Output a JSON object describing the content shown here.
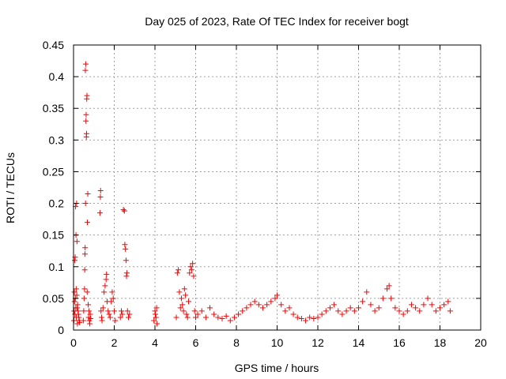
{
  "chart_data": {
    "type": "scatter",
    "title": "Day 025 of 2023, Rate Of TEC Index for receiver bogt",
    "xlabel": "GPS time / hours",
    "ylabel": "ROTI / TECUs",
    "xlim": [
      0,
      20
    ],
    "ylim": [
      0,
      0.45
    ],
    "x_ticks": [
      0,
      2,
      4,
      6,
      8,
      10,
      12,
      14,
      16,
      18,
      20
    ],
    "y_ticks": [
      0,
      0.05,
      0.1,
      0.15,
      0.2,
      0.25,
      0.3,
      0.35,
      0.4,
      0.45
    ],
    "x_tick_labels": [
      "0",
      "2",
      "4",
      "6",
      "8",
      "10",
      "12",
      "14",
      "16",
      "18",
      "20"
    ],
    "y_tick_labels": [
      "0",
      "0.05",
      "0.1",
      "0.15",
      "0.2",
      "0.25",
      "0.3",
      "0.35",
      "0.4",
      "0.45"
    ],
    "grid": true,
    "marker": "plus",
    "color": "#ff0000",
    "series": [
      {
        "name": "ROTI",
        "points": [
          [
            0.02,
            0.015
          ],
          [
            0.03,
            0.03
          ],
          [
            0.04,
            0.06
          ],
          [
            0.05,
            0.045
          ],
          [
            0.06,
            0.11
          ],
          [
            0.07,
            0.025
          ],
          [
            0.08,
            0.115
          ],
          [
            0.09,
            0.05
          ],
          [
            0.1,
            0.195
          ],
          [
            0.11,
            0.035
          ],
          [
            0.12,
            0.15
          ],
          [
            0.13,
            0.065
          ],
          [
            0.14,
            0.02
          ],
          [
            0.15,
            0.2
          ],
          [
            0.16,
            0.055
          ],
          [
            0.17,
            0.14
          ],
          [
            0.18,
            0.035
          ],
          [
            0.19,
            0.01
          ],
          [
            0.2,
            0.04
          ],
          [
            0.22,
            0.03
          ],
          [
            0.24,
            0.025
          ],
          [
            0.26,
            0.02
          ],
          [
            0.28,
            0.015
          ],
          [
            0.3,
            0.012
          ],
          [
            0.48,
            0.015
          ],
          [
            0.5,
            0.03
          ],
          [
            0.52,
            0.05
          ],
          [
            0.54,
            0.065
          ],
          [
            0.55,
            0.095
          ],
          [
            0.56,
            0.12
          ],
          [
            0.57,
            0.13
          ],
          [
            0.58,
            0.41
          ],
          [
            0.59,
            0.2
          ],
          [
            0.6,
            0.42
          ],
          [
            0.61,
            0.33
          ],
          [
            0.62,
            0.34
          ],
          [
            0.63,
            0.305
          ],
          [
            0.64,
            0.31
          ],
          [
            0.65,
            0.365
          ],
          [
            0.66,
            0.37
          ],
          [
            0.67,
            0.06
          ],
          [
            0.68,
            0.17
          ],
          [
            0.7,
            0.215
          ],
          [
            0.72,
            0.04
          ],
          [
            0.74,
            0.02
          ],
          [
            0.76,
            0.03
          ],
          [
            0.78,
            0.015
          ],
          [
            0.8,
            0.01
          ],
          [
            0.82,
            0.025
          ],
          [
            0.84,
            0.018
          ],
          [
            1.3,
            0.185
          ],
          [
            1.32,
            0.21
          ],
          [
            1.33,
            0.22
          ],
          [
            1.35,
            0.03
          ],
          [
            1.38,
            0.02
          ],
          [
            1.4,
            0.015
          ],
          [
            1.45,
            0.035
          ],
          [
            1.5,
            0.06
          ],
          [
            1.55,
            0.07
          ],
          [
            1.6,
            0.08
          ],
          [
            1.62,
            0.088
          ],
          [
            1.65,
            0.045
          ],
          [
            1.7,
            0.03
          ],
          [
            1.75,
            0.025
          ],
          [
            1.8,
            0.02
          ],
          [
            1.85,
            0.045
          ],
          [
            1.9,
            0.06
          ],
          [
            1.95,
            0.05
          ],
          [
            2.0,
            0.03
          ],
          [
            2.05,
            0.015
          ],
          [
            2.3,
            0.02
          ],
          [
            2.35,
            0.03
          ],
          [
            2.4,
            0.025
          ],
          [
            2.45,
            0.19
          ],
          [
            2.5,
            0.188
          ],
          [
            2.52,
            0.135
          ],
          [
            2.55,
            0.128
          ],
          [
            2.58,
            0.11
          ],
          [
            2.6,
            0.085
          ],
          [
            2.62,
            0.09
          ],
          [
            2.65,
            0.03
          ],
          [
            2.7,
            0.02
          ],
          [
            2.75,
            0.025
          ],
          [
            3.95,
            0.015
          ],
          [
            4.0,
            0.03
          ],
          [
            4.02,
            0.025
          ],
          [
            4.05,
            0.02
          ],
          [
            4.08,
            0.035
          ],
          [
            4.1,
            0.01
          ],
          [
            5.05,
            0.02
          ],
          [
            5.1,
            0.09
          ],
          [
            5.15,
            0.095
          ],
          [
            5.2,
            0.06
          ],
          [
            5.25,
            0.035
          ],
          [
            5.3,
            0.05
          ],
          [
            5.35,
            0.04
          ],
          [
            5.4,
            0.03
          ],
          [
            5.45,
            0.065
          ],
          [
            5.5,
            0.055
          ],
          [
            5.55,
            0.025
          ],
          [
            5.6,
            0.02
          ],
          [
            5.65,
            0.045
          ],
          [
            5.7,
            0.09
          ],
          [
            5.75,
            0.1
          ],
          [
            5.8,
            0.095
          ],
          [
            5.85,
            0.105
          ],
          [
            5.9,
            0.085
          ],
          [
            5.95,
            0.03
          ],
          [
            6.0,
            0.02
          ],
          [
            6.1,
            0.025
          ],
          [
            6.3,
            0.03
          ],
          [
            6.5,
            0.02
          ],
          [
            6.7,
            0.035
          ],
          [
            6.9,
            0.025
          ],
          [
            7.1,
            0.02
          ],
          [
            7.3,
            0.018
          ],
          [
            7.5,
            0.022
          ],
          [
            7.7,
            0.015
          ],
          [
            7.9,
            0.02
          ],
          [
            8.1,
            0.025
          ],
          [
            8.3,
            0.03
          ],
          [
            8.5,
            0.035
          ],
          [
            8.7,
            0.04
          ],
          [
            8.9,
            0.045
          ],
          [
            9.1,
            0.04
          ],
          [
            9.3,
            0.035
          ],
          [
            9.5,
            0.04
          ],
          [
            9.7,
            0.045
          ],
          [
            9.9,
            0.05
          ],
          [
            10.0,
            0.055
          ],
          [
            10.2,
            0.04
          ],
          [
            10.4,
            0.03
          ],
          [
            10.6,
            0.035
          ],
          [
            10.8,
            0.025
          ],
          [
            11.0,
            0.02
          ],
          [
            11.2,
            0.018
          ],
          [
            11.4,
            0.015
          ],
          [
            11.6,
            0.02
          ],
          [
            11.8,
            0.018
          ],
          [
            12.0,
            0.02
          ],
          [
            12.2,
            0.025
          ],
          [
            12.4,
            0.03
          ],
          [
            12.6,
            0.035
          ],
          [
            12.8,
            0.04
          ],
          [
            13.0,
            0.03
          ],
          [
            13.2,
            0.025
          ],
          [
            13.4,
            0.03
          ],
          [
            13.6,
            0.035
          ],
          [
            13.8,
            0.03
          ],
          [
            14.0,
            0.035
          ],
          [
            14.2,
            0.045
          ],
          [
            14.4,
            0.06
          ],
          [
            14.6,
            0.04
          ],
          [
            14.8,
            0.03
          ],
          [
            15.0,
            0.035
          ],
          [
            15.2,
            0.05
          ],
          [
            15.4,
            0.065
          ],
          [
            15.5,
            0.07
          ],
          [
            15.6,
            0.05
          ],
          [
            15.8,
            0.035
          ],
          [
            16.0,
            0.03
          ],
          [
            16.2,
            0.025
          ],
          [
            16.4,
            0.03
          ],
          [
            16.6,
            0.04
          ],
          [
            16.8,
            0.035
          ],
          [
            17.0,
            0.03
          ],
          [
            17.2,
            0.04
          ],
          [
            17.4,
            0.05
          ],
          [
            17.6,
            0.04
          ],
          [
            17.8,
            0.03
          ],
          [
            18.0,
            0.035
          ],
          [
            18.2,
            0.04
          ],
          [
            18.4,
            0.045
          ],
          [
            18.5,
            0.03
          ]
        ]
      }
    ]
  }
}
